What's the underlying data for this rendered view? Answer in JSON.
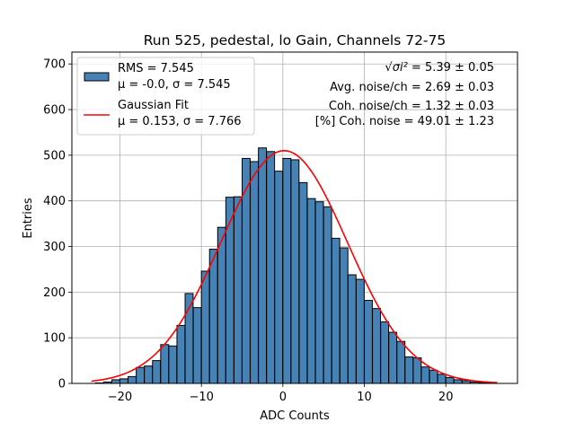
{
  "chart_data": {
    "type": "bar",
    "title": "Run 525, pedestal, lo Gain, Channels 72-75",
    "xlabel": "ADC Counts",
    "ylabel": "Entries",
    "xlim": [
      -25.9,
      28.8
    ],
    "ylim": [
      0,
      726
    ],
    "xticks": [
      -20,
      -10,
      0,
      10,
      20
    ],
    "yticks": [
      0,
      100,
      200,
      300,
      400,
      500,
      600,
      700
    ],
    "grid": true,
    "bin_width": 0.98,
    "histogram": {
      "name": "RMS = 7.545",
      "stats": "μ = -0.0, σ = 7.545",
      "color": "#4682b4",
      "edge_color": "#000000",
      "bin_left_edges": [
        -23.0,
        -22.0,
        -21.0,
        -20.0,
        -19.0,
        -18.0,
        -17.0,
        -16.0,
        -15.0,
        -14.0,
        -13.0,
        -12.0,
        -11.0,
        -10.0,
        -9.0,
        -8.0,
        -7.0,
        -6.0,
        -5.0,
        -4.0,
        -3.0,
        -2.0,
        -1.0,
        0.0,
        1.0,
        2.0,
        3.0,
        4.0,
        5.0,
        6.0,
        7.0,
        8.0,
        9.0,
        10.0,
        11.0,
        12.0,
        13.0,
        14.0,
        15.0,
        16.0,
        17.0,
        18.0,
        19.0,
        20.0,
        21.0,
        22.0,
        23.0,
        24.0,
        25.0
      ],
      "counts": [
        1,
        3,
        8,
        10,
        15,
        35,
        38,
        50,
        85,
        82,
        127,
        197,
        166,
        246,
        294,
        342,
        408,
        409,
        493,
        486,
        516,
        508,
        465,
        493,
        490,
        440,
        405,
        398,
        387,
        318,
        297,
        238,
        228,
        182,
        164,
        135,
        112,
        92,
        58,
        56,
        36,
        29,
        20,
        13,
        8,
        6,
        3,
        2,
        1
      ]
    },
    "fit": {
      "name": "Gaussian Fit",
      "stats": "μ = 0.153, σ = 7.766",
      "mu": 0.153,
      "sigma": 7.766,
      "amplitude": 510,
      "x_range": [
        -23.5,
        26.3
      ],
      "color": "#ff0000"
    },
    "annotations": [
      {
        "prefix": "√",
        "symbol": "σi²",
        "value": " = 5.39 ± 0.05"
      },
      {
        "text": "Avg. noise/ch = 2.69 ± 0.03"
      },
      {
        "text": "Coh. noise/ch = 1.32 ± 0.03"
      },
      {
        "text": "[%] Coh. noise = 49.01 ± 1.23"
      }
    ]
  }
}
